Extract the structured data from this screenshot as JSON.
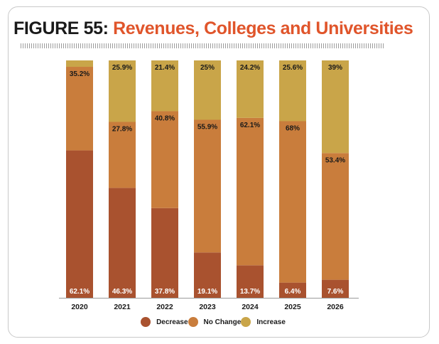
{
  "header": {
    "figure_label": "FIGURE 55:",
    "figure_title": "Revenues, Colleges and Universities"
  },
  "colors": {
    "decrease": "#a9522f",
    "no_change": "#c97d3c",
    "increase": "#c9a549",
    "title_accent": "#e0552b"
  },
  "chart_data": {
    "type": "bar",
    "stacked": true,
    "normalized_percent": true,
    "categories": [
      "2020",
      "2021",
      "2022",
      "2023",
      "2024",
      "2025",
      "2026"
    ],
    "series": [
      {
        "name": "Decrease",
        "values": [
          62.1,
          46.3,
          37.8,
          19.1,
          13.7,
          6.4,
          7.6
        ],
        "labels": [
          "62.1%",
          "46.3%",
          "37.8%",
          "19.1%",
          "13.7%",
          "6.4%",
          "7.6%"
        ]
      },
      {
        "name": "No Change",
        "values": [
          35.2,
          27.8,
          40.8,
          55.9,
          62.1,
          68,
          53.4
        ],
        "labels": [
          "35.2%",
          "27.8%",
          "40.8%",
          "55.9%",
          "62.1%",
          "68%",
          "53.4%"
        ]
      },
      {
        "name": "Increase",
        "values": [
          2.7,
          25.9,
          21.4,
          25,
          24.2,
          25.6,
          39
        ],
        "labels": [
          "",
          "25.9%",
          "21.4%",
          "25%",
          "24.2%",
          "25.6%",
          "39%"
        ]
      }
    ],
    "ylim": [
      0,
      100
    ],
    "grid": false,
    "legend_position": "bottom"
  }
}
